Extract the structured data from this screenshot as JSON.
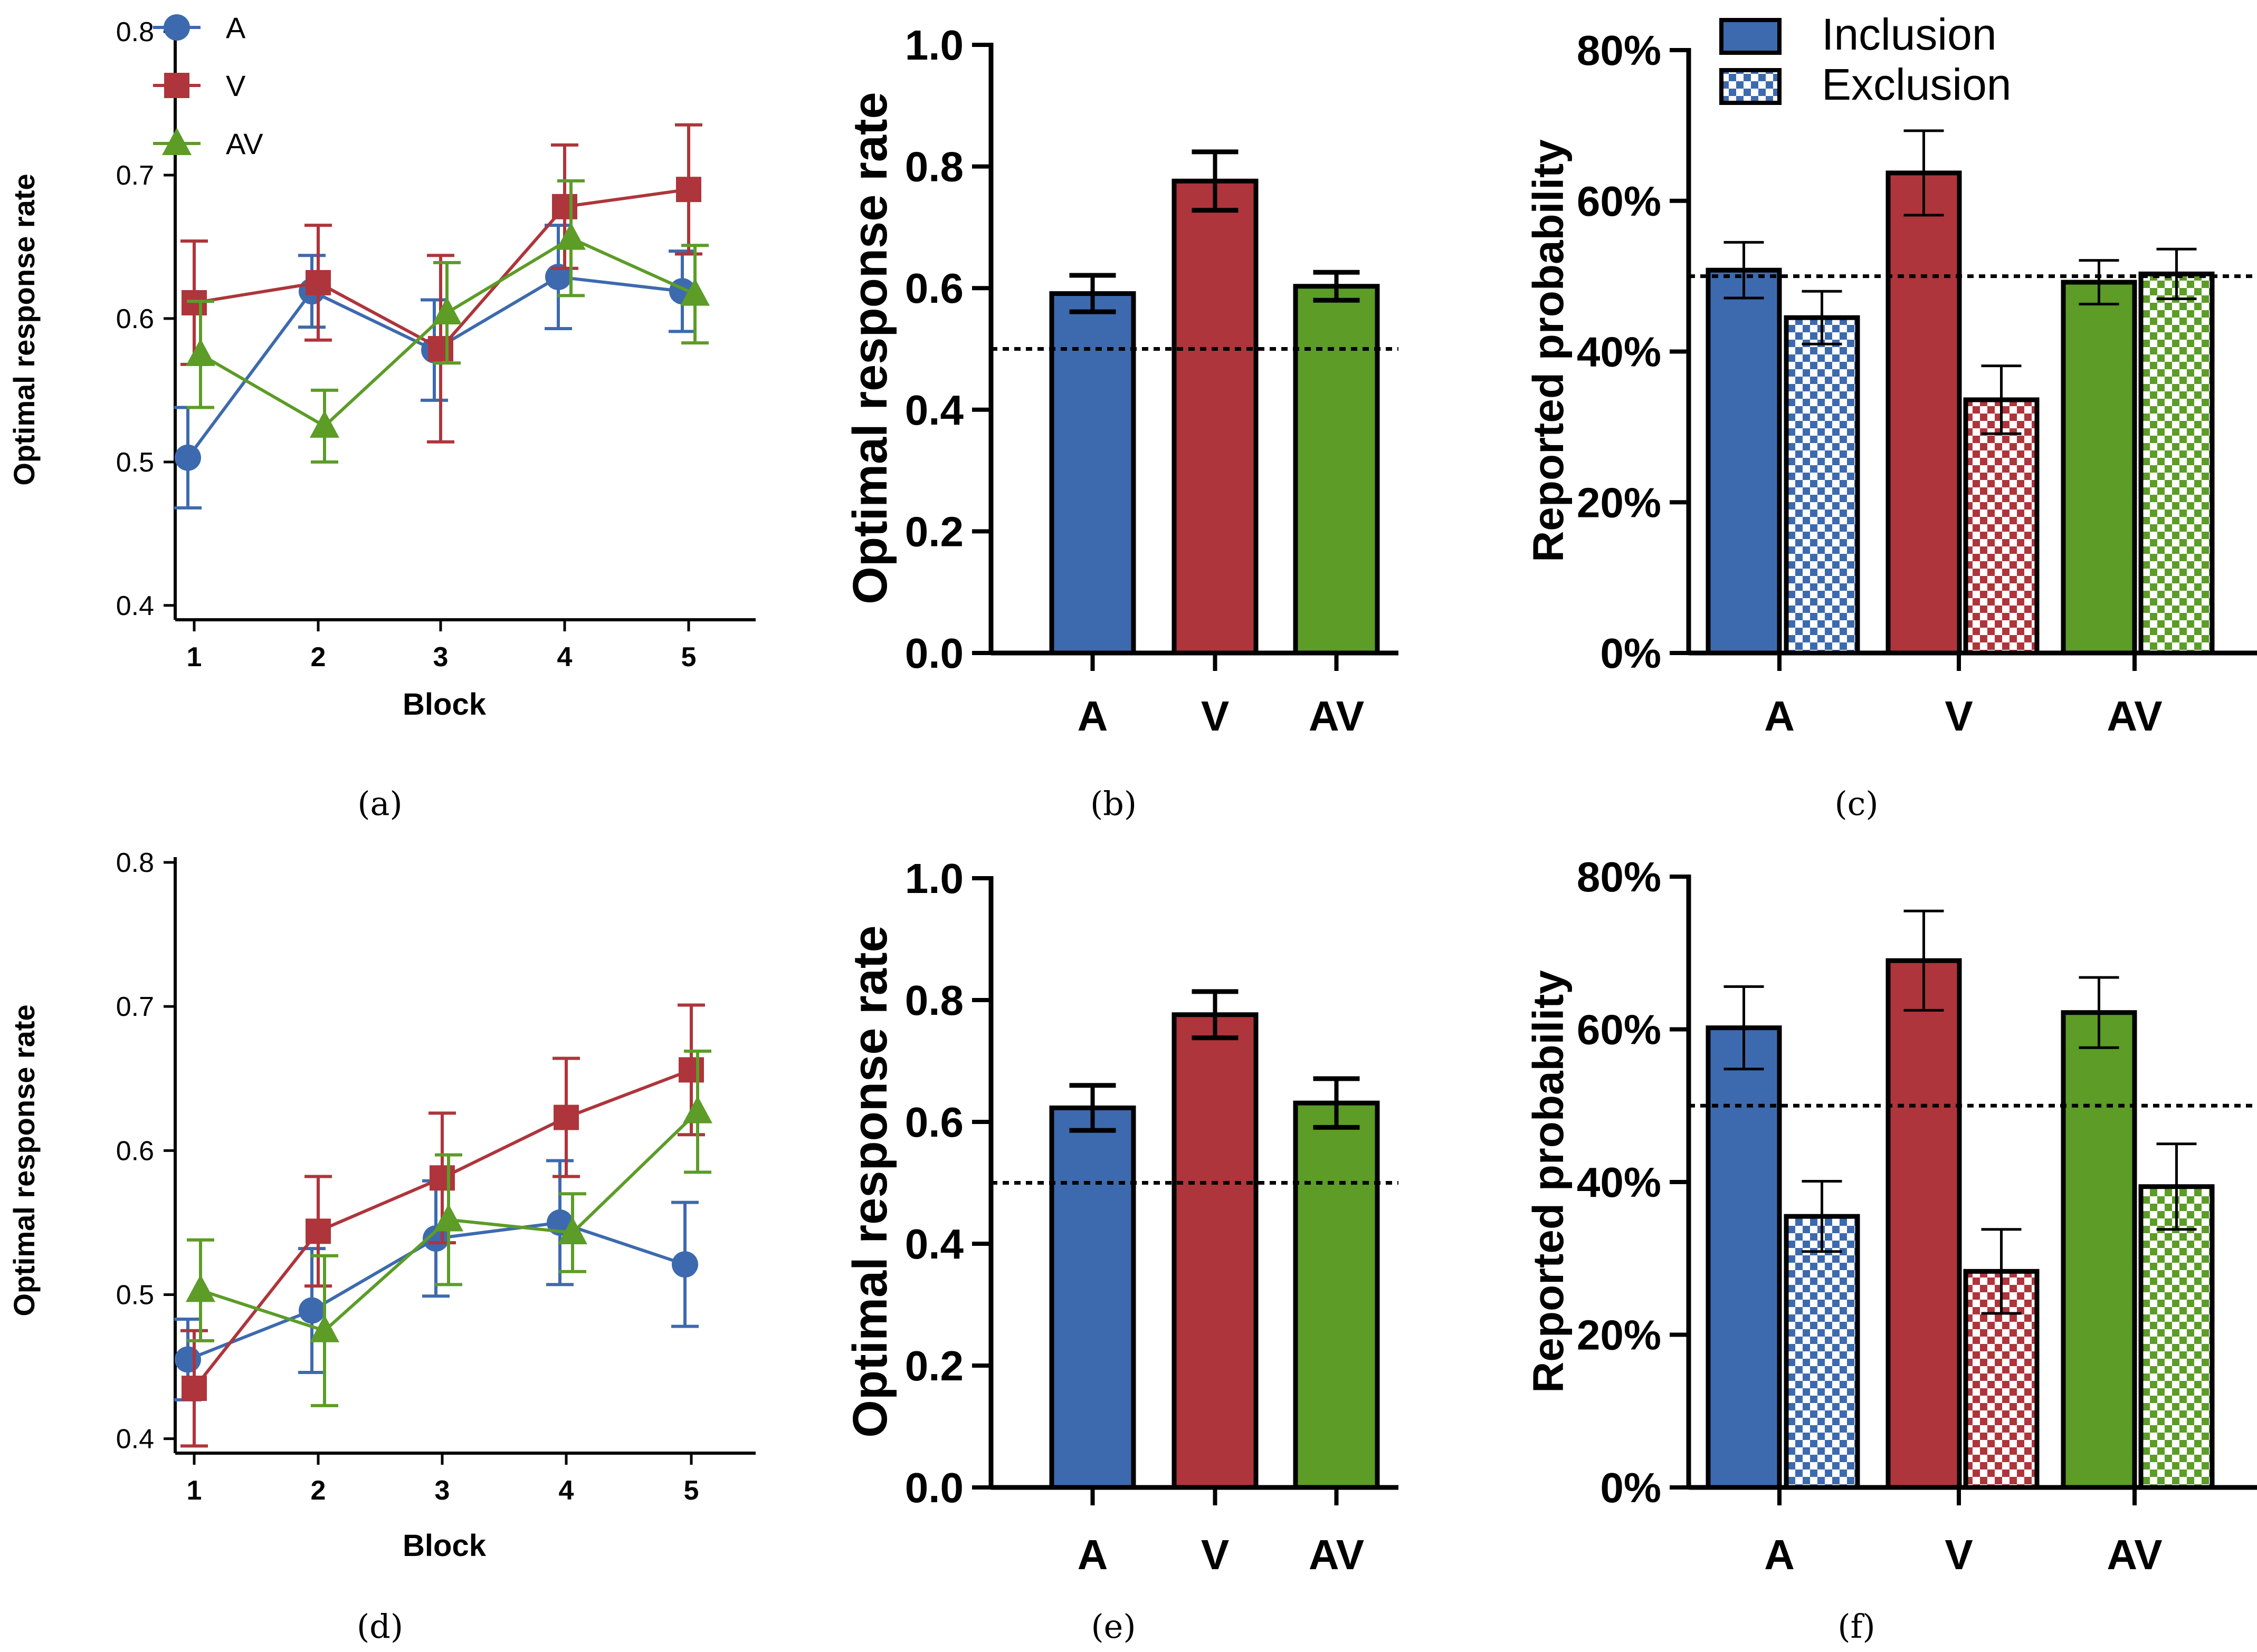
{
  "colors": {
    "A": "#3D6AAE",
    "V": "#AE353B",
    "AV": "#5C9C27",
    "axis": "#000000"
  },
  "chart_data": [
    {
      "id": "a",
      "type": "line",
      "caption": "(a)",
      "xlabel": "Block",
      "ylabel": "Optimal response rate",
      "ylim": [
        0.39,
        0.8
      ],
      "yticks": [
        "0.4",
        "0.5",
        "0.6",
        "0.7",
        "0.8"
      ],
      "xticks": [
        "1",
        "2",
        "3",
        "4",
        "5"
      ],
      "legend": [
        "A",
        "V",
        "AV"
      ],
      "series": [
        {
          "name": "A",
          "values": [
            0.503,
            0.619,
            0.578,
            0.629,
            0.619
          ],
          "errors": [
            0.035,
            0.025,
            0.035,
            0.036,
            0.028
          ]
        },
        {
          "name": "V",
          "values": [
            0.611,
            0.625,
            0.579,
            0.678,
            0.69
          ],
          "errors": [
            0.043,
            0.04,
            0.065,
            0.043,
            0.045
          ]
        },
        {
          "name": "AV",
          "values": [
            0.575,
            0.525,
            0.604,
            0.656,
            0.617
          ],
          "errors": [
            0.037,
            0.025,
            0.035,
            0.04,
            0.034
          ]
        }
      ]
    },
    {
      "id": "b",
      "type": "bar",
      "caption": "(b)",
      "ylabel": "Optimal response rate",
      "ylim": [
        0,
        1.0
      ],
      "yticks": [
        "0.0",
        "0.2",
        "0.4",
        "0.6",
        "0.8",
        "1.0"
      ],
      "categories": [
        "A",
        "V",
        "AV"
      ],
      "values": [
        0.591,
        0.776,
        0.603
      ],
      "errors": [
        0.03,
        0.048,
        0.023
      ],
      "reference_line": 0.5
    },
    {
      "id": "c",
      "type": "bar",
      "caption": "(c)",
      "ylabel": "Reported probability",
      "ylim": [
        0,
        80
      ],
      "yticks": [
        "0%",
        "20%",
        "40%",
        "60%",
        "80%"
      ],
      "categories": [
        "A",
        "V",
        "AV"
      ],
      "legend": [
        "Inclusion",
        "Exclusion"
      ],
      "series": [
        {
          "name": "Inclusion",
          "values": [
            50.8,
            63.7,
            49.2
          ],
          "errors": [
            3.7,
            5.6,
            2.9
          ]
        },
        {
          "name": "Exclusion",
          "values": [
            44.5,
            33.6,
            50.3
          ],
          "errors": [
            3.5,
            4.5,
            3.3
          ]
        }
      ],
      "reference_line": 50
    },
    {
      "id": "d",
      "type": "line",
      "caption": "(d)",
      "xlabel": "Block",
      "ylabel": "Optimal response rate",
      "ylim": [
        0.39,
        0.8
      ],
      "yticks": [
        "0.4",
        "0.5",
        "0.6",
        "0.7",
        "0.8"
      ],
      "xticks": [
        "1",
        "2",
        "3",
        "4",
        "5"
      ],
      "series": [
        {
          "name": "A",
          "values": [
            0.455,
            0.489,
            0.539,
            0.55,
            0.521
          ],
          "errors": [
            0.028,
            0.043,
            0.04,
            0.043,
            0.043
          ]
        },
        {
          "name": "V",
          "values": [
            0.435,
            0.544,
            0.581,
            0.623,
            0.656
          ],
          "errors": [
            0.04,
            0.038,
            0.045,
            0.041,
            0.045
          ]
        },
        {
          "name": "AV",
          "values": [
            0.503,
            0.475,
            0.552,
            0.543,
            0.627
          ],
          "errors": [
            0.035,
            0.052,
            0.045,
            0.027,
            0.042
          ]
        }
      ]
    },
    {
      "id": "e",
      "type": "bar",
      "caption": "(e)",
      "ylabel": "Optimal response rate",
      "ylim": [
        0,
        1.0
      ],
      "yticks": [
        "0.0",
        "0.2",
        "0.4",
        "0.6",
        "0.8",
        "1.0"
      ],
      "categories": [
        "A",
        "V",
        "AV"
      ],
      "values": [
        0.623,
        0.776,
        0.631
      ],
      "errors": [
        0.037,
        0.038,
        0.04
      ],
      "reference_line": 0.5
    },
    {
      "id": "f",
      "type": "bar",
      "caption": "(f)",
      "ylabel": "Reported probability",
      "ylim": [
        0,
        80
      ],
      "yticks": [
        "0%",
        "20%",
        "40%",
        "60%",
        "80%"
      ],
      "categories": [
        "A",
        "V",
        "AV"
      ],
      "series": [
        {
          "name": "Inclusion",
          "values": [
            60.2,
            69.0,
            62.2
          ],
          "errors": [
            5.4,
            6.5,
            4.6
          ]
        },
        {
          "name": "Exclusion",
          "values": [
            35.5,
            28.3,
            39.4
          ],
          "errors": [
            4.6,
            5.5,
            5.6
          ]
        }
      ],
      "reference_line": 50
    }
  ]
}
